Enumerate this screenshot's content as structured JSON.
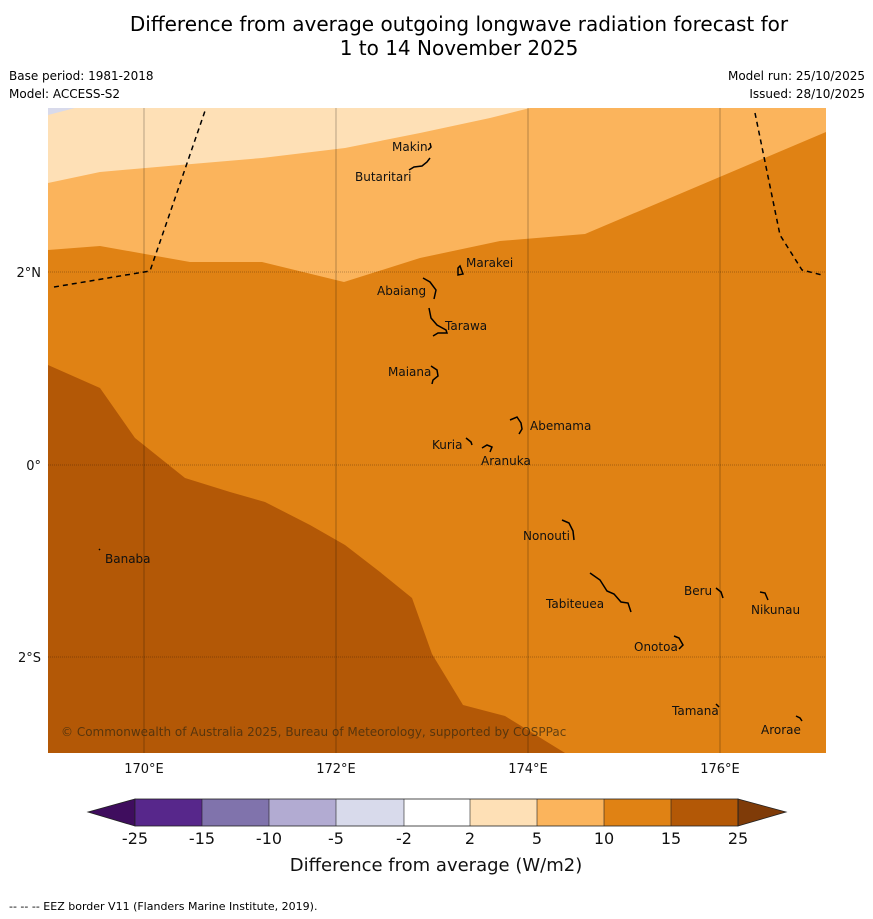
{
  "title_line1": "Difference from average outgoing longwave radiation forecast for",
  "title_line2": "1 to 14 November 2025",
  "base_period": "Base period: 1981-2018",
  "model": "Model: ACCESS-S2",
  "model_run": "Model run: 25/10/2025",
  "issued": "Issued: 28/10/2025",
  "copyright": "© Commonwealth of Australia 2025, Bureau of Meteorology, supported by COSPPac",
  "map": {
    "lon_labels": [
      "170°E",
      "172°E",
      "174°E",
      "176°E"
    ],
    "lat_labels": [
      "2°N",
      "0°",
      "2°S"
    ],
    "places": [
      "Makin",
      "Butaritari",
      "Marakei",
      "Abaiang",
      "Tarawa",
      "Maiana",
      "Abemama",
      "Kuria",
      "Aranuka",
      "Banaba",
      "Nonouti",
      "Beru",
      "Tabiteuea",
      "Nikunau",
      "Onotoa",
      "Tamana",
      "Arorae"
    ]
  },
  "colorbar": {
    "ticks": [
      "-25",
      "-15",
      "-10",
      "-5",
      "-2",
      "2",
      "5",
      "10",
      "15",
      "25"
    ],
    "label": "Difference from average (W/m2)",
    "colors": [
      "#3f0d5e",
      "#57278b",
      "#8073ac",
      "#b2abd2",
      "#d8daeb",
      "#ffffff",
      "#fee0b6",
      "#fbb45c",
      "#e08214",
      "#b35806",
      "#7f3b08"
    ]
  },
  "footer": "--  --  -- EEZ border V11 (Flanders Marine Institute, 2019)."
}
